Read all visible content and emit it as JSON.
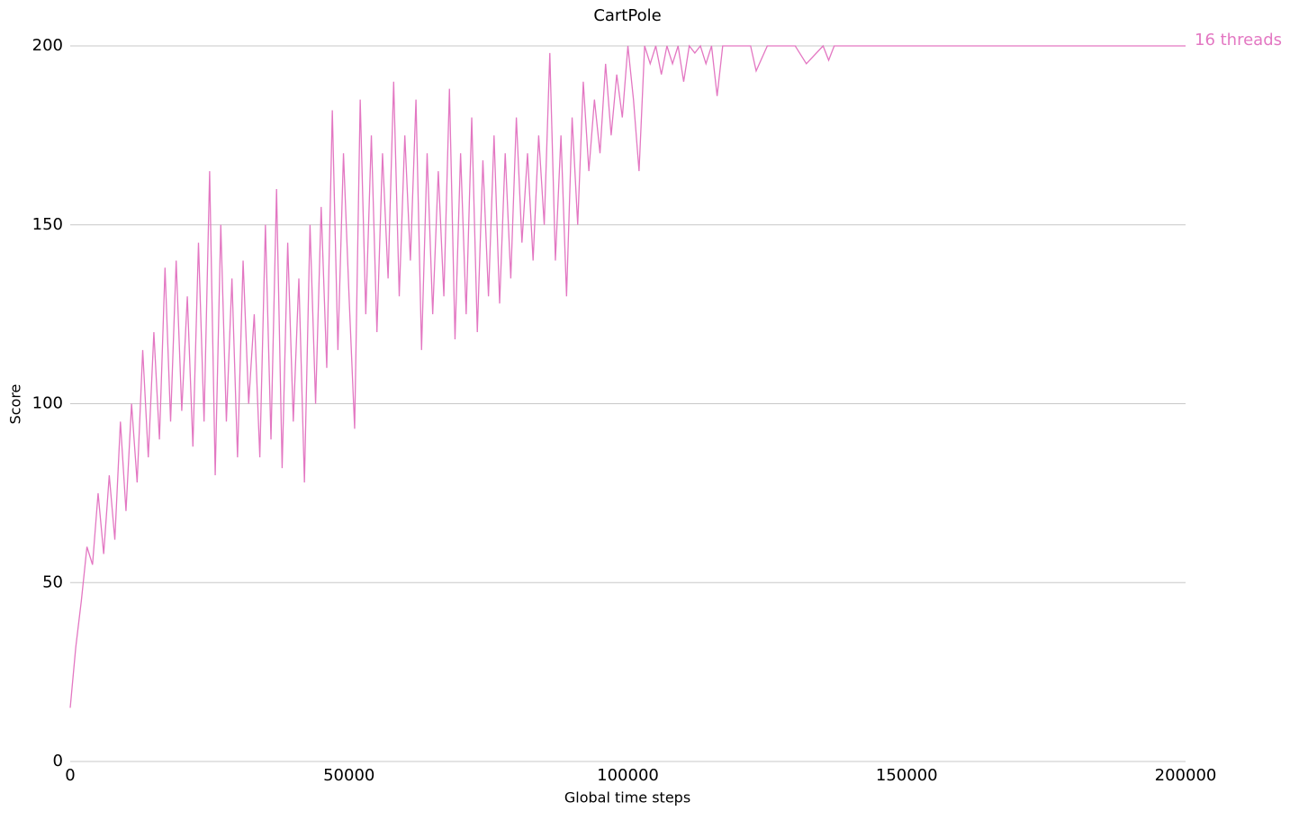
{
  "chart_data": {
    "type": "line",
    "title": "CartPole",
    "x_label": "Global time steps",
    "y_label": "Score",
    "xlim": [
      0,
      200000
    ],
    "ylim": [
      0,
      200
    ],
    "xticks": [
      0,
      50000,
      100000,
      150000,
      200000
    ],
    "yticks": [
      0,
      50,
      100,
      150,
      200
    ],
    "grid": true,
    "series": [
      {
        "name": "16 threads",
        "color": "#e377c2",
        "x": [
          0,
          1000,
          2000,
          3000,
          4000,
          5000,
          6000,
          7000,
          8000,
          9000,
          10000,
          11000,
          12000,
          13000,
          14000,
          15000,
          16000,
          17000,
          18000,
          19000,
          20000,
          21000,
          22000,
          23000,
          24000,
          25000,
          26000,
          27000,
          28000,
          29000,
          30000,
          31000,
          32000,
          33000,
          34000,
          35000,
          36000,
          37000,
          38000,
          39000,
          40000,
          41000,
          42000,
          43000,
          44000,
          45000,
          46000,
          47000,
          48000,
          49000,
          50000,
          51000,
          52000,
          53000,
          54000,
          55000,
          56000,
          57000,
          58000,
          59000,
          60000,
          61000,
          62000,
          63000,
          64000,
          65000,
          66000,
          67000,
          68000,
          69000,
          70000,
          71000,
          72000,
          73000,
          74000,
          75000,
          76000,
          77000,
          78000,
          79000,
          80000,
          81000,
          82000,
          83000,
          84000,
          85000,
          86000,
          87000,
          88000,
          89000,
          90000,
          91000,
          92000,
          93000,
          94000,
          95000,
          96000,
          97000,
          98000,
          99000,
          100000,
          101000,
          102000,
          103000,
          104000,
          105000,
          106000,
          107000,
          108000,
          109000,
          110000,
          111000,
          112000,
          113000,
          114000,
          115000,
          116000,
          117000,
          118000,
          119000,
          120000,
          122000,
          123000,
          125000,
          130000,
          132000,
          135000,
          136000,
          137000,
          150000,
          175000,
          200000
        ],
        "values": [
          15,
          32,
          45,
          60,
          55,
          75,
          58,
          80,
          62,
          95,
          70,
          100,
          78,
          115,
          85,
          120,
          90,
          138,
          95,
          140,
          98,
          130,
          88,
          145,
          95,
          165,
          80,
          150,
          95,
          135,
          85,
          140,
          100,
          125,
          85,
          150,
          90,
          160,
          82,
          145,
          95,
          135,
          78,
          150,
          100,
          155,
          110,
          182,
          115,
          170,
          130,
          93,
          185,
          125,
          175,
          120,
          170,
          135,
          190,
          130,
          175,
          140,
          185,
          115,
          170,
          125,
          165,
          130,
          188,
          118,
          170,
          125,
          180,
          120,
          168,
          130,
          175,
          128,
          170,
          135,
          180,
          145,
          170,
          140,
          175,
          150,
          198,
          140,
          175,
          130,
          180,
          150,
          190,
          165,
          185,
          170,
          195,
          175,
          192,
          180,
          200,
          185,
          165,
          200,
          195,
          200,
          192,
          200,
          195,
          200,
          190,
          200,
          198,
          200,
          195,
          200,
          186,
          200,
          200,
          200,
          200,
          200,
          193,
          200,
          200,
          195,
          200,
          196,
          200,
          200,
          200,
          200
        ]
      }
    ]
  }
}
